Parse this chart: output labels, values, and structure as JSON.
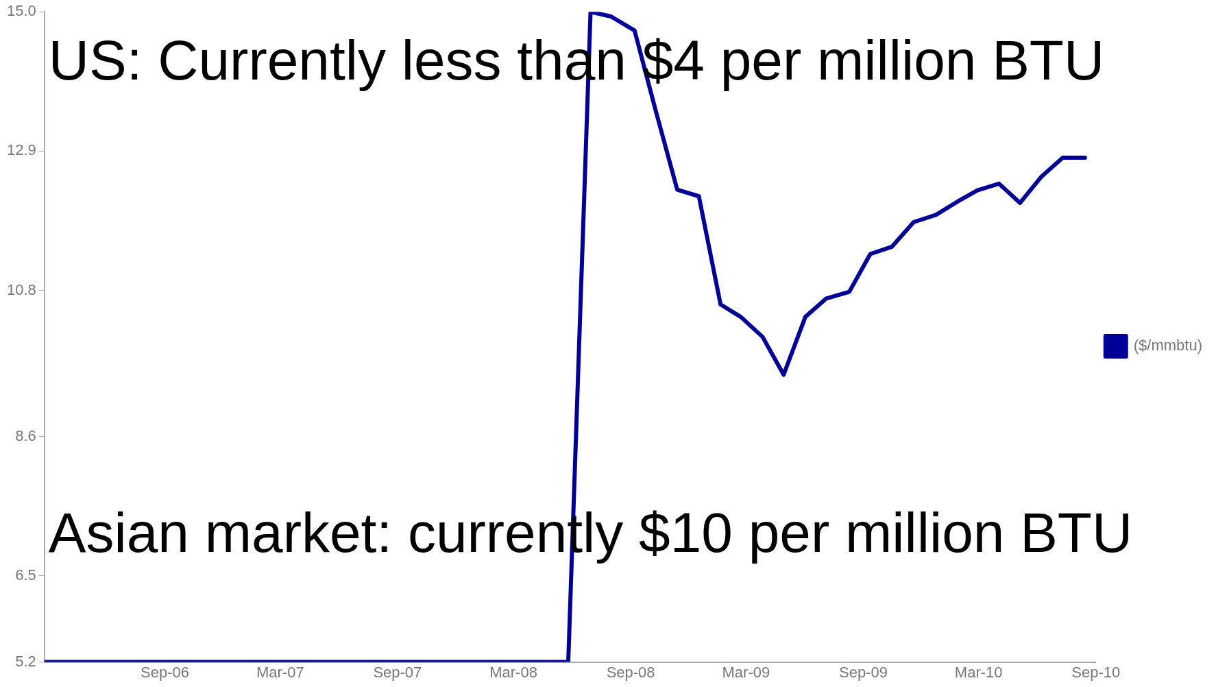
{
  "chart_data": {
    "type": "line",
    "annotations": [
      "US: Currently less than $4 per million BTU",
      "Asian market: currently $10 per million BTU"
    ],
    "x": [
      "2006-02-24",
      "2008-05-26",
      "2008-06-30",
      "2008-08-01",
      "2008-09-07",
      "2008-10-10",
      "2008-11-13",
      "2008-12-17",
      "2009-01-20",
      "2009-02-21",
      "2009-03-27",
      "2009-04-29",
      "2009-06-02",
      "2009-07-05",
      "2009-08-10",
      "2009-09-12",
      "2009-10-16",
      "2009-11-19",
      "2009-12-24",
      "2010-01-27",
      "2010-02-27",
      "2010-04-02",
      "2010-05-05",
      "2010-06-08",
      "2010-07-11",
      "2010-08-15"
    ],
    "series": [
      {
        "name": "($/mmbtu)",
        "color": "#000099",
        "values": [
          5.2,
          5.2,
          15.0,
          14.93,
          14.72,
          13.52,
          12.32,
          12.22,
          10.59,
          10.4,
          10.1,
          9.53,
          10.4,
          10.68,
          10.78,
          11.35,
          11.46,
          11.83,
          11.94,
          12.14,
          12.31,
          12.41,
          12.12,
          12.52,
          12.8,
          12.8
        ]
      }
    ],
    "xlim": [
      "2006-02-24",
      "2010-09-01"
    ],
    "xticks": [
      {
        "value": "2006-09",
        "label": "Sep-06"
      },
      {
        "value": "2007-03",
        "label": "Mar-07"
      },
      {
        "value": "2007-09",
        "label": "Sep-07"
      },
      {
        "value": "2008-03",
        "label": "Mar-08"
      },
      {
        "value": "2008-09",
        "label": "Sep-08"
      },
      {
        "value": "2009-03",
        "label": "Mar-09"
      },
      {
        "value": "2009-09",
        "label": "Sep-09"
      },
      {
        "value": "2010-03",
        "label": "Mar-10"
      },
      {
        "value": "2010-09",
        "label": "Sep-10"
      }
    ],
    "ylim": [
      5.2,
      15.0
    ],
    "yticks": [
      5.2,
      6.5,
      8.6,
      10.8,
      12.9,
      {
        "value": 15.0,
        "label": "15.0"
      }
    ],
    "grid": false,
    "legend": "right",
    "marker": "none",
    "line_style": "solid"
  }
}
